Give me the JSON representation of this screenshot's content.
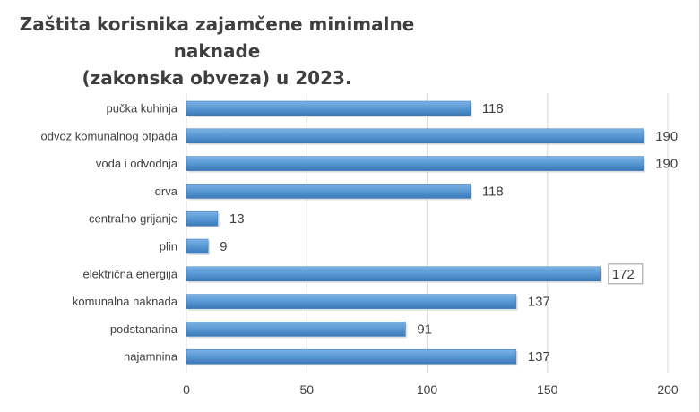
{
  "chart_data": {
    "type": "bar",
    "orientation": "horizontal",
    "title_lines": [
      "Zaštita korisnika zajamčene minimalne naknade",
      "(zakonska obveza) u 2023."
    ],
    "categories": [
      "pučka kuhinja",
      "odvoz komunalnog otpada",
      "voda i odvodnja",
      "drva",
      "centralno grijanje",
      "plin",
      "električna energija",
      "komunalna naknada",
      "podstanarina",
      "najamnina"
    ],
    "values": [
      118,
      190,
      190,
      118,
      13,
      9,
      172,
      137,
      91,
      137
    ],
    "xlim": [
      0,
      200
    ],
    "xticks": [
      0,
      50,
      100,
      150,
      200
    ],
    "grid": true,
    "legend": "none",
    "boxed_label_category": "električna energija",
    "colors": {
      "bar": "#5b9bd5",
      "bar_dark": "#2e75b6",
      "grid": "#d9d9d9",
      "label": "#404040"
    }
  }
}
